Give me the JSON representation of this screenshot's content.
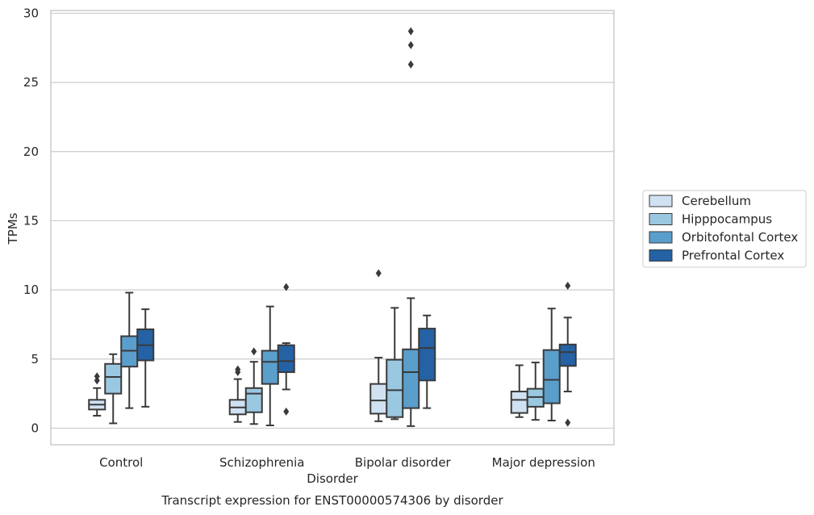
{
  "chart_data": {
    "type": "box",
    "title": "",
    "xlabel": "Disorder",
    "ylabel": "TPMs",
    "caption": "Transcript expression for ENST00000574306 by disorder",
    "ylim": [
      -1.2,
      30.2
    ],
    "yticks": [
      0,
      5,
      10,
      15,
      20,
      25,
      30
    ],
    "grid": "horizontal",
    "legend_position": "right",
    "categories": [
      "Control",
      "Schizophrenia",
      "Bipolar disorder",
      "Major depression"
    ],
    "series": [
      {
        "name": "Cerebellum",
        "color": "#d0e1f2",
        "boxes": [
          {
            "whisker_low": 0.9,
            "q1": 1.35,
            "median": 1.7,
            "q3": 2.05,
            "whisker_high": 2.9,
            "outliers": [
              3.45,
              3.75
            ]
          },
          {
            "whisker_low": 0.45,
            "q1": 1.0,
            "median": 1.5,
            "q3": 2.05,
            "whisker_high": 3.55,
            "outliers": [
              4.05,
              4.25
            ]
          },
          {
            "whisker_low": 0.5,
            "q1": 1.05,
            "median": 2.0,
            "q3": 3.2,
            "whisker_high": 5.1,
            "outliers": [
              11.2
            ]
          },
          {
            "whisker_low": 0.8,
            "q1": 1.1,
            "median": 2.05,
            "q3": 2.65,
            "whisker_high": 4.55,
            "outliers": []
          }
        ]
      },
      {
        "name": "Hipppocampus",
        "color": "#9ac8e0",
        "boxes": [
          {
            "whisker_low": 0.35,
            "q1": 2.5,
            "median": 3.7,
            "q3": 4.65,
            "whisker_high": 5.35,
            "outliers": []
          },
          {
            "whisker_low": 0.3,
            "q1": 1.15,
            "median": 2.5,
            "q3": 2.9,
            "whisker_high": 4.8,
            "outliers": [
              5.55
            ]
          },
          {
            "whisker_low": 0.65,
            "q1": 0.8,
            "median": 2.75,
            "q3": 4.95,
            "whisker_high": 8.7,
            "outliers": []
          },
          {
            "whisker_low": 0.6,
            "q1": 1.55,
            "median": 2.25,
            "q3": 2.85,
            "whisker_high": 4.75,
            "outliers": []
          }
        ]
      },
      {
        "name": "Orbitofontal Cortex",
        "color": "#5a9ecc",
        "boxes": [
          {
            "whisker_low": 1.45,
            "q1": 4.45,
            "median": 5.6,
            "q3": 6.65,
            "whisker_high": 9.8,
            "outliers": []
          },
          {
            "whisker_low": 0.2,
            "q1": 3.2,
            "median": 4.8,
            "q3": 5.6,
            "whisker_high": 8.8,
            "outliers": []
          },
          {
            "whisker_low": 0.15,
            "q1": 1.45,
            "median": 4.05,
            "q3": 5.7,
            "whisker_high": 9.4,
            "outliers": [
              26.3,
              27.7,
              28.7
            ]
          },
          {
            "whisker_low": 0.55,
            "q1": 1.8,
            "median": 3.5,
            "q3": 5.65,
            "whisker_high": 8.65,
            "outliers": []
          }
        ]
      },
      {
        "name": "Prefrontal Cortex",
        "color": "#2462a5",
        "boxes": [
          {
            "whisker_low": 1.55,
            "q1": 4.9,
            "median": 6.0,
            "q3": 7.15,
            "whisker_high": 8.6,
            "outliers": []
          },
          {
            "whisker_low": 2.8,
            "q1": 4.05,
            "median": 4.85,
            "q3": 6.0,
            "whisker_high": 6.15,
            "outliers": [
              10.2,
              1.2
            ]
          },
          {
            "whisker_low": 1.45,
            "q1": 3.45,
            "median": 5.8,
            "q3": 7.2,
            "whisker_high": 8.15,
            "outliers": []
          },
          {
            "whisker_low": 2.65,
            "q1": 4.5,
            "median": 5.5,
            "q3": 6.05,
            "whisker_high": 8.0,
            "outliers": [
              10.3,
              0.4
            ]
          }
        ]
      }
    ]
  }
}
